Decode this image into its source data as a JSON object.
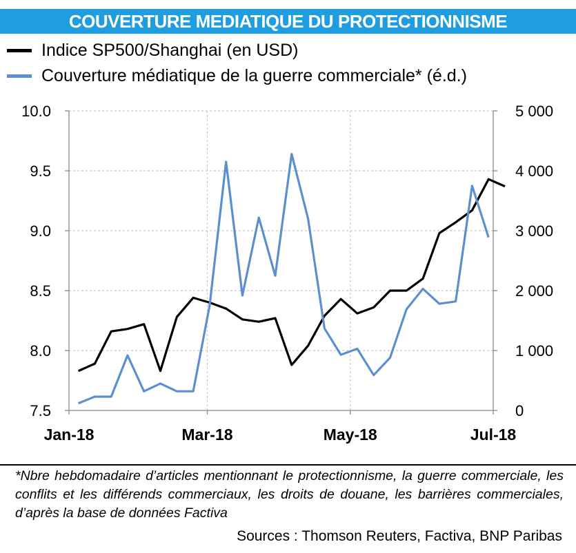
{
  "title": "COUVERTURE MEDIATIQUE DU PROTECTIONNISME",
  "colors": {
    "title_bg": "#1e9de0",
    "series_black": "#000000",
    "series_blue": "#5b8fd0",
    "grid": "#c8c8c8"
  },
  "chart_data": {
    "type": "line",
    "series": [
      {
        "name": "Indice SP500/Shanghai (en USD)",
        "axis": "left",
        "color": "#000000",
        "x": [
          "2018-01-05",
          "2018-01-12",
          "2018-01-19",
          "2018-01-26",
          "2018-02-02",
          "2018-02-09",
          "2018-02-16",
          "2018-02-23",
          "2018-03-02",
          "2018-03-09",
          "2018-03-16",
          "2018-03-23",
          "2018-03-30",
          "2018-04-06",
          "2018-04-13",
          "2018-04-20",
          "2018-04-27",
          "2018-05-04",
          "2018-05-11",
          "2018-05-18",
          "2018-05-25",
          "2018-06-01",
          "2018-06-08",
          "2018-06-15",
          "2018-06-22",
          "2018-06-29",
          "2018-07-06"
        ],
        "values": [
          7.83,
          7.89,
          8.16,
          8.18,
          8.22,
          7.83,
          8.28,
          8.44,
          8.4,
          8.35,
          8.26,
          8.24,
          8.27,
          7.88,
          8.04,
          8.29,
          8.43,
          8.31,
          8.36,
          8.5,
          8.5,
          8.6,
          8.98,
          9.07,
          9.17,
          9.43,
          9.37
        ]
      },
      {
        "name": "Couverture médiatique de la guerre commerciale* (é.d.)",
        "axis": "right",
        "color": "#5b8fd0",
        "x": [
          "2018-01-05",
          "2018-01-12",
          "2018-01-19",
          "2018-01-26",
          "2018-02-02",
          "2018-02-09",
          "2018-02-16",
          "2018-02-23",
          "2018-03-02",
          "2018-03-09",
          "2018-03-16",
          "2018-03-23",
          "2018-03-30",
          "2018-04-06",
          "2018-04-13",
          "2018-04-20",
          "2018-04-27",
          "2018-05-04",
          "2018-05-11",
          "2018-05-18",
          "2018-05-25",
          "2018-06-01",
          "2018-06-08",
          "2018-06-15",
          "2018-06-22",
          "2018-06-29"
        ],
        "values": [
          120,
          230,
          230,
          920,
          320,
          450,
          320,
          320,
          1750,
          4150,
          1920,
          3220,
          2250,
          4280,
          3200,
          1370,
          930,
          1030,
          590,
          880,
          1690,
          2030,
          1780,
          1820,
          3750,
          2890
        ]
      }
    ],
    "y_left": {
      "ylim": [
        7.5,
        10.0
      ],
      "ticks": [
        "7.5",
        "8.0",
        "8.5",
        "9.0",
        "9.5",
        "10.0"
      ]
    },
    "y_right": {
      "ylim": [
        0,
        5000
      ],
      "ticks": [
        "0",
        "1 000",
        "2 000",
        "3 000",
        "4 000",
        "5 000"
      ]
    },
    "x_axis": {
      "ticks": [
        "Jan-18",
        "Mar-18",
        "May-18",
        "Jul-18"
      ],
      "tick_dates": [
        "2018-01-01",
        "2018-03-01",
        "2018-05-01",
        "2018-07-01"
      ]
    },
    "grid": true,
    "legend_position": "top-left"
  },
  "footnote": "*Nbre hebdomadaire d’articles mentionnant le protectionnisme, la guerre commerciale, les conflits et les différends commerciaux, les droits de douane, les barrières commerciales, d’après la base de données Factiva",
  "sources": "Sources : Thomson Reuters, Factiva, BNP Paribas"
}
